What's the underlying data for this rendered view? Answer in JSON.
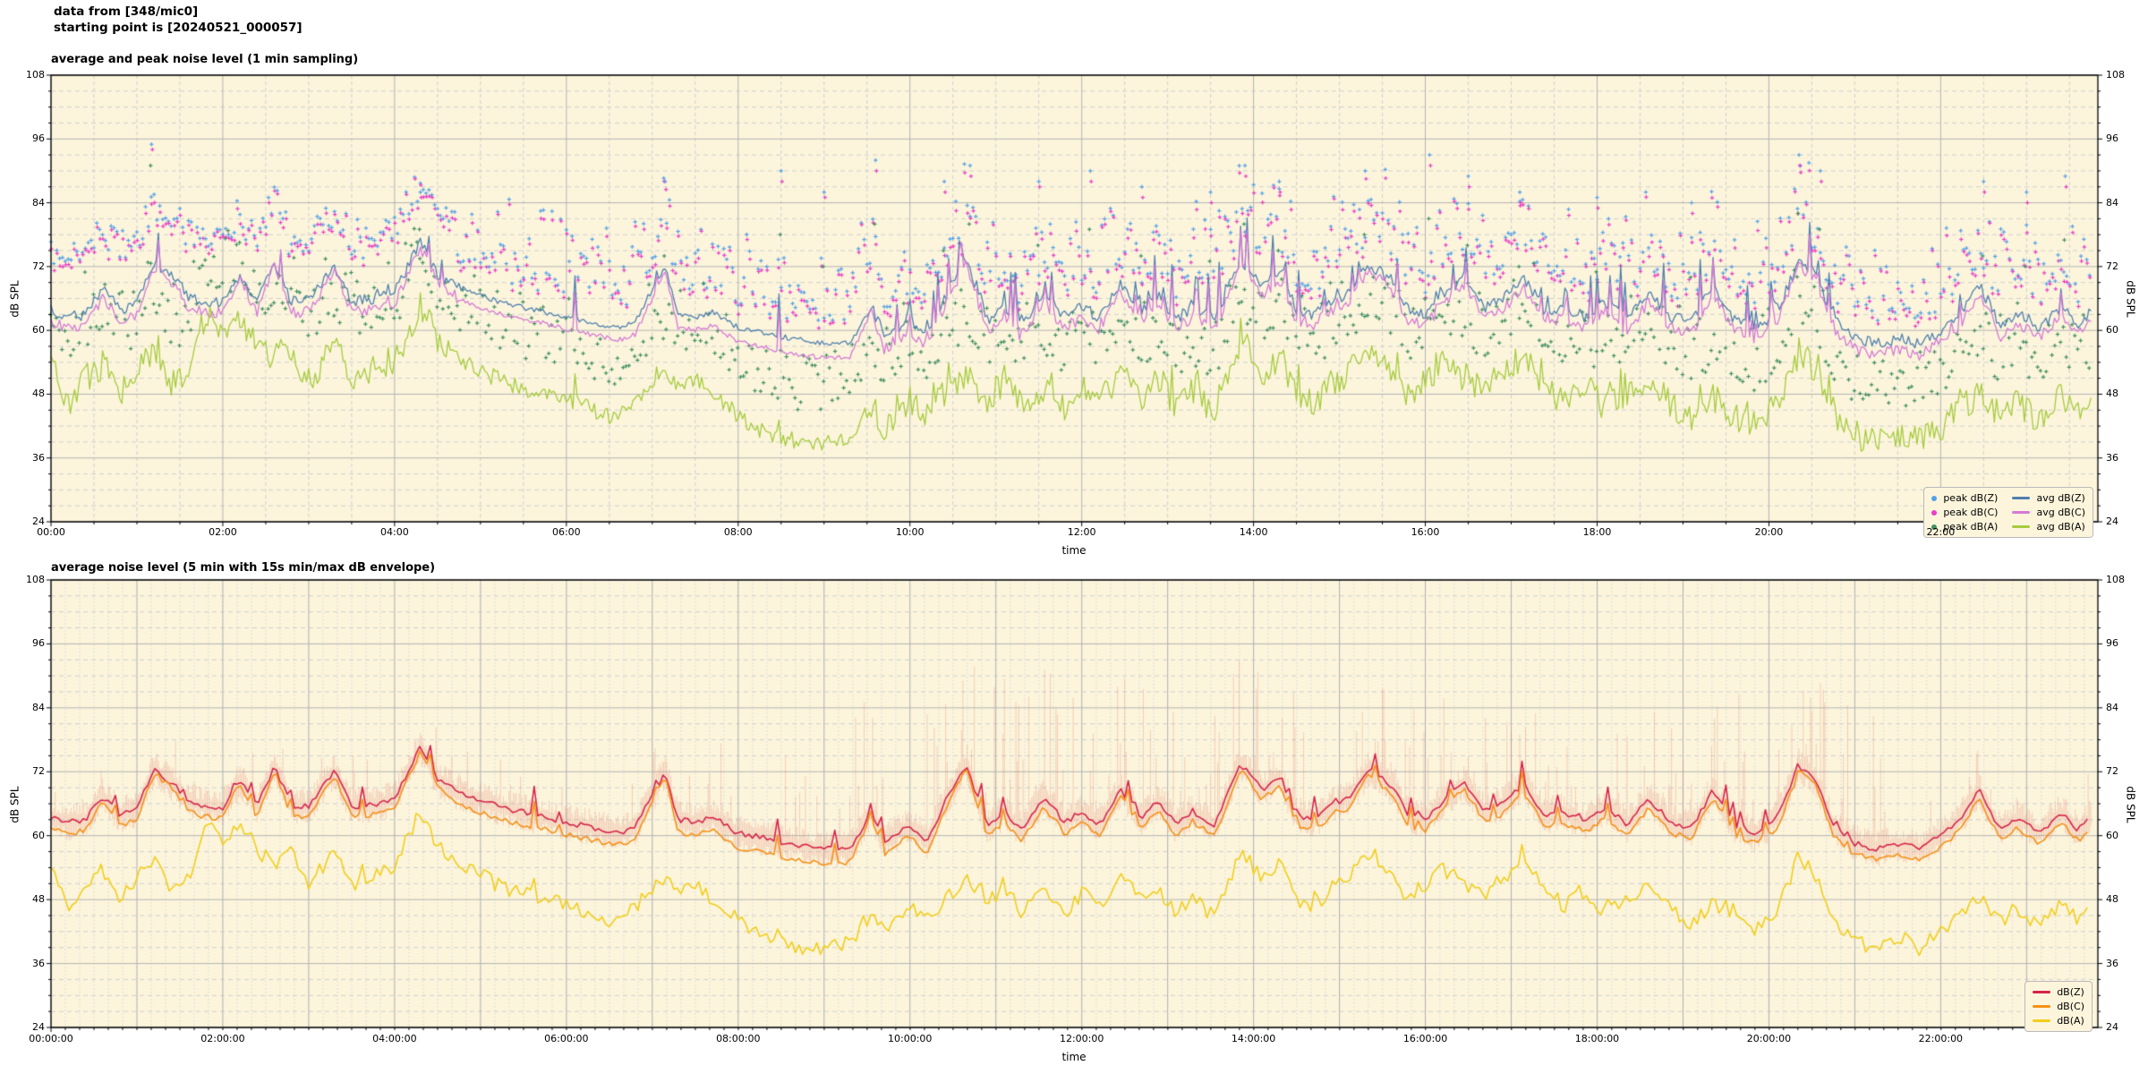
{
  "header": {
    "line1": "data from [348/mic0]",
    "line2": "starting point is [20240521_000057]"
  },
  "colors": {
    "axes_background": "#fcf5dc",
    "grid_major": "#b3b3b3",
    "grid_minor": "#cfcfcf",
    "grid_dotted": "#d6d6d6",
    "frame": "#000000",
    "peak_dbz": "#55a0e6",
    "peak_dbc": "#e93ec6",
    "peak_dba": "#418f60",
    "avg_dbz": "#4e7fae",
    "avg_dbc": "#d678d6",
    "avg_dba": "#a6cb3d",
    "dbz": "#d62349",
    "dbc": "#f59016",
    "dba": "#f2ce1b",
    "envelope": "rgba(224,112,96,0.30)"
  },
  "charts": [
    {
      "title": "average and peak noise level (1 min sampling)",
      "xlabel": "time",
      "ylabel": "dB SPL",
      "ytick_labels": [
        "108",
        "96",
        "84",
        "72",
        "60",
        "48",
        "36",
        "24"
      ],
      "xtick_labels": [
        "00:00",
        "02:00",
        "04:00",
        "06:00",
        "08:00",
        "10:00",
        "12:00",
        "14:00",
        "16:00",
        "18:00",
        "20:00",
        "22:00"
      ],
      "legend": [
        {
          "label": "peak dB(Z)",
          "marker": "dot",
          "color": "#55a0e6"
        },
        {
          "label": "peak dB(C)",
          "marker": "dot",
          "color": "#e93ec6"
        },
        {
          "label": "peak dB(A)",
          "marker": "dot",
          "color": "#418f60"
        },
        {
          "label": "avg dB(Z)",
          "marker": "line",
          "color": "#4e7fae"
        },
        {
          "label": "avg dB(C)",
          "marker": "line",
          "color": "#d678d6"
        },
        {
          "label": "avg dB(A)",
          "marker": "line",
          "color": "#a6cb3d"
        }
      ]
    },
    {
      "title": "average noise level (5 min with 15s min/max dB envelope)",
      "xlabel": "time",
      "ylabel": "dB SPL",
      "ytick_labels": [
        "108",
        "96",
        "84",
        "72",
        "60",
        "48",
        "36",
        "24"
      ],
      "xtick_labels": [
        "00:00:00",
        "02:00:00",
        "04:00:00",
        "06:00:00",
        "08:00:00",
        "10:00:00",
        "12:00:00",
        "14:00:00",
        "16:00:00",
        "18:00:00",
        "20:00:00",
        "22:00:00"
      ],
      "legend": [
        {
          "label": "dB(Z)",
          "marker": "line",
          "color": "#d62349"
        },
        {
          "label": "dB(C)",
          "marker": "line",
          "color": "#f59016"
        },
        {
          "label": "dB(A)",
          "marker": "line",
          "color": "#f2ce1b"
        }
      ]
    }
  ],
  "chart_data": {
    "type": "line+scatter",
    "ylim": [
      24,
      108
    ],
    "ytick_step": 12,
    "yminor_step": 3,
    "xlim_hours": [
      0,
      23.83
    ],
    "x_major_hours_chart1": 2,
    "x_minor_hours_chart1": 0.5,
    "x_major_hours_chart2": 1,
    "x_minor_hours_chart2": 0.1667,
    "x_labeled_every_hours": 2,
    "note": "24 h of sound-level data starting 2024-05-21 00:00:57; shared keyframes (dB SPL vs hours) describe avg dB(Z)/dB(C)/dB(A); both charts depict this signal (1-min and 5-min sampling).",
    "keyframes": {
      "hours": [
        0,
        0.2,
        0.4,
        0.6,
        0.8,
        1,
        1.2,
        1.4,
        1.6,
        1.8,
        2,
        2.2,
        2.4,
        2.6,
        2.8,
        3,
        3.3,
        3.5,
        3.8,
        4,
        4.3,
        4.5,
        4.7,
        5,
        5.3,
        5.6,
        6,
        6.3,
        6.6,
        6.8,
        7.15,
        7.3,
        7.5,
        7.7,
        8,
        8.3,
        8.6,
        9,
        9.3,
        9.55,
        9.7,
        10,
        10.2,
        10.4,
        10.65,
        10.9,
        11.1,
        11.3,
        11.55,
        11.8,
        12,
        12.2,
        12.45,
        12.7,
        12.9,
        13.1,
        13.3,
        13.55,
        13.85,
        14.1,
        14.3,
        14.5,
        14.7,
        14.9,
        15.1,
        15.35,
        15.6,
        15.8,
        16,
        16.2,
        16.45,
        16.7,
        16.9,
        17.15,
        17.4,
        17.6,
        17.85,
        18.1,
        18.35,
        18.6,
        18.85,
        19.1,
        19.35,
        19.6,
        19.85,
        20.1,
        20.35,
        20.55,
        20.75,
        21,
        21.25,
        21.5,
        21.75,
        22,
        22.2,
        22.45,
        22.7,
        22.9,
        23.15,
        23.4,
        23.6,
        23.75
      ],
      "dbz": [
        63.5,
        62.5,
        63,
        67.5,
        64,
        65,
        72.5,
        70,
        66.5,
        65.5,
        65.3,
        70.5,
        65.5,
        73,
        65.5,
        65.5,
        72,
        65.5,
        66,
        67,
        76.5,
        70.5,
        68.5,
        66.5,
        65,
        64,
        62.5,
        61.5,
        60.5,
        61.5,
        72,
        63,
        62.5,
        63.5,
        60.5,
        59.5,
        58.5,
        57.5,
        57.5,
        64.5,
        59,
        62,
        59,
        66,
        73.5,
        62,
        64.5,
        61,
        67,
        62.5,
        64.5,
        62,
        68.5,
        63.5,
        66.5,
        62,
        64.5,
        62,
        73.5,
        68.5,
        71,
        64,
        63,
        65.5,
        67,
        72.5,
        69.5,
        64,
        63,
        66.5,
        70,
        64.5,
        66,
        69.5,
        63.5,
        64.5,
        62.5,
        65.5,
        62,
        67,
        62.5,
        61.5,
        68.5,
        62,
        60.5,
        63.5,
        73,
        70.5,
        62,
        58.5,
        57.5,
        58.5,
        57.5,
        60,
        62.5,
        68.5,
        61,
        63.5,
        60.5,
        64.5,
        61,
        63.5
      ],
      "dbc": [
        61.5,
        60.3,
        61,
        66.3,
        62,
        63,
        71.8,
        69,
        64.5,
        63.5,
        63.3,
        69.7,
        63.5,
        72.3,
        63.5,
        63.5,
        71.2,
        63.5,
        64,
        65,
        75.8,
        69,
        66.5,
        64.3,
        62.8,
        61.8,
        60.2,
        59.2,
        58.2,
        59.2,
        71.2,
        60.5,
        60,
        61,
        57.8,
        56.8,
        55.8,
        54.8,
        55,
        63.5,
        56.5,
        60,
        56.8,
        64.5,
        72.8,
        59.8,
        62.5,
        58.8,
        65.5,
        60.3,
        62.5,
        60,
        67.3,
        61.5,
        64.8,
        60,
        62.5,
        60,
        72.8,
        66.8,
        69.5,
        62,
        61,
        63.5,
        65.2,
        71.5,
        68,
        62,
        61,
        64.8,
        68.7,
        62.5,
        64,
        68,
        61.5,
        62.5,
        60.5,
        63.5,
        60,
        65.3,
        60.5,
        59.5,
        67,
        60,
        58.5,
        61.5,
        72,
        69.3,
        60,
        56.5,
        55.5,
        56.5,
        55.5,
        58,
        60.5,
        67,
        59,
        61.5,
        58.5,
        62.8,
        59,
        61.5
      ],
      "dba": [
        55,
        46,
        51,
        53.5,
        48.5,
        52,
        56,
        50,
        52,
        63,
        59,
        61.5,
        57,
        55,
        56.5,
        50.5,
        57,
        51,
        53,
        54,
        65,
        58,
        54.5,
        52.5,
        50,
        48.5,
        47,
        45,
        43.5,
        46.5,
        52.5,
        49.5,
        51,
        48,
        44,
        41,
        39.5,
        38.5,
        40,
        45.5,
        42,
        47,
        44,
        48,
        52,
        47,
        50.5,
        45.5,
        49,
        45,
        49.5,
        46,
        52.5,
        47.5,
        50,
        45.5,
        48,
        44.5,
        57.5,
        52,
        55,
        48.5,
        46,
        50,
        52,
        56.5,
        52,
        47.5,
        50.5,
        54,
        51,
        49,
        52,
        55.5,
        49.5,
        46.5,
        49.5,
        45.5,
        48,
        51.5,
        46,
        43.5,
        47.5,
        44,
        42,
        46,
        56,
        52.5,
        44,
        40.5,
        38.5,
        41,
        39,
        41.5,
        44.5,
        48.5,
        44,
        46.5,
        43,
        47.5,
        44.5,
        46
      ]
    },
    "peak_scatter": {
      "step_min": 2,
      "z_offset_db": [
        5,
        19
      ],
      "c_below_z_db": [
        0.3,
        1.8
      ],
      "a_offset_db": [
        7,
        19
      ],
      "night_hours": [
        0,
        4.7
      ],
      "night_offset_db": [
        9,
        14
      ],
      "clip_max_db": 94,
      "marker": "plus",
      "outliers": [
        {
          "t": 1.17,
          "z": 95,
          "c": 94,
          "a": 91
        },
        {
          "t": 4.3,
          "z": 86,
          "c": 85,
          "a": 79
        },
        {
          "t": 7.15,
          "z": 88,
          "c": 86.5,
          "a": 74
        },
        {
          "t": 8.5,
          "z": 90,
          "c": 88,
          "a": 78
        },
        {
          "t": 9.0,
          "z": 86,
          "c": 85,
          "a": 72
        },
        {
          "t": 9.6,
          "z": 92,
          "c": 90,
          "a": 80
        },
        {
          "t": 10.4,
          "z": 88,
          "c": 86,
          "a": 75
        },
        {
          "t": 10.7,
          "z": 91,
          "c": 89,
          "a": 80
        },
        {
          "t": 11.5,
          "z": 88,
          "c": 87,
          "a": 76
        },
        {
          "t": 12.1,
          "z": 90,
          "c": 88,
          "a": 79
        },
        {
          "t": 12.7,
          "z": 87,
          "c": 85,
          "a": 74
        },
        {
          "t": 13.5,
          "z": 86,
          "c": 84,
          "a": 73
        },
        {
          "t": 13.9,
          "z": 91,
          "c": 89,
          "a": 80
        },
        {
          "t": 14.3,
          "z": 88,
          "c": 86,
          "a": 75
        },
        {
          "t": 15.3,
          "z": 90,
          "c": 88.5,
          "a": 78
        },
        {
          "t": 16.05,
          "z": 93,
          "c": 91,
          "a": 81
        },
        {
          "t": 16.5,
          "z": 89,
          "c": 87,
          "a": 76
        },
        {
          "t": 17.1,
          "z": 86,
          "c": 84,
          "a": 72
        },
        {
          "t": 18.0,
          "z": 85,
          "c": 83,
          "a": 71
        },
        {
          "t": 19.1,
          "z": 84,
          "c": 82,
          "a": 70
        },
        {
          "t": 20.35,
          "z": 93,
          "c": 91,
          "a": 82
        },
        {
          "t": 20.6,
          "z": 90,
          "c": 88,
          "a": 79
        },
        {
          "t": 22.5,
          "z": 88,
          "c": 86,
          "a": 74
        },
        {
          "t": 23.0,
          "z": 86,
          "c": 84,
          "a": 72
        },
        {
          "t": 23.45,
          "z": 89,
          "c": 87,
          "a": 77
        }
      ]
    },
    "envelope": {
      "series": "dbz",
      "min_offset_db": [
        -3.5,
        -1
      ],
      "max_offset_quiet_db": 9,
      "max_offset_busy_db": 17,
      "max_offset_peak_db": 24,
      "busy_hours": [
        7.5,
        21.5
      ],
      "peak_windows": [
        [
          9,
          16.3
        ],
        [
          19.3,
          21.4
        ]
      ],
      "clip_max_db": 93
    },
    "noise_model": {
      "line_jitter_db_chart1": {
        "dbz": 1.1,
        "dbc": 1.1,
        "dba": 2.7
      },
      "line_jitter_db_chart2": {
        "dbz": 0.55,
        "dbc": 0.5,
        "dba": 1.5
      },
      "quiet_hours": [
        4.8,
        9.5
      ],
      "busy_hours": [
        9.4,
        21.2
      ],
      "spike_extra_db_max": 9
    }
  }
}
